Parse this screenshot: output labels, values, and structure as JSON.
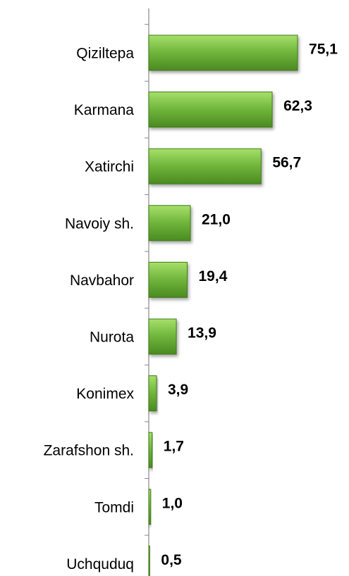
{
  "chart_data": {
    "type": "bar",
    "orientation": "horizontal",
    "categories": [
      "Qiziltepa",
      "Karmana",
      "Xatirchi",
      "Navoiy sh.",
      "Navbahor",
      "Nurota",
      "Konimex",
      "Zarafshon sh.",
      "Tomdi",
      "Uchquduq"
    ],
    "values": [
      75.1,
      62.3,
      56.7,
      21.0,
      19.4,
      13.9,
      3.9,
      1.7,
      1.0,
      0.5
    ],
    "value_labels": [
      "75,1",
      "62,3",
      "56,7",
      "21,0",
      "19,4",
      "13,9",
      "3,9",
      "1,7",
      "1,0",
      "0,5"
    ],
    "color": "#6fb43a"
  }
}
